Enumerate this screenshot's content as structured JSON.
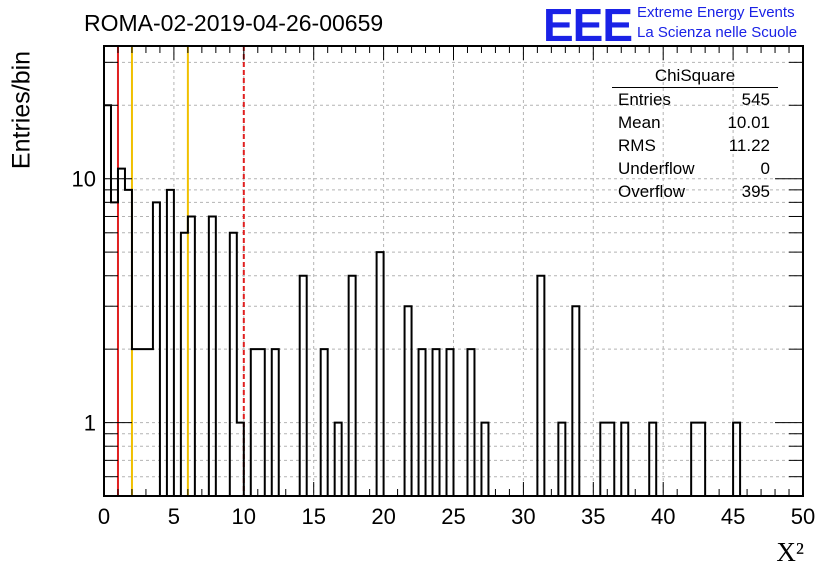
{
  "run_title": "ROMA-02-2019-04-26-00659",
  "logo": {
    "text": "EEE",
    "line1": "Extreme Energy Events",
    "line2": "La Scienza nelle Scuole",
    "color": "#1a22e6"
  },
  "stats": {
    "title": "ChiSquare",
    "rows": [
      {
        "label": "Entries",
        "value": "545"
      },
      {
        "label": "Mean",
        "value": "10.01"
      },
      {
        "label": "RMS",
        "value": "11.22"
      },
      {
        "label": "Underflow",
        "value": "0"
      },
      {
        "label": "Overflow",
        "value": "395"
      }
    ]
  },
  "chart_data": {
    "type": "bar",
    "style": "step-histogram",
    "title": "ROMA-02-2019-04-26-00659",
    "xlabel": "X²",
    "ylabel": "Entries/bin",
    "xlim": [
      0,
      50
    ],
    "ylim": [
      0.5,
      35
    ],
    "yscale": "log",
    "grid": true,
    "bin_width": 0.5,
    "xticks": [
      0,
      5,
      10,
      15,
      20,
      25,
      30,
      35,
      40,
      45,
      50
    ],
    "yticks": [
      1,
      10
    ],
    "bins": [
      {
        "x0": 0.0,
        "value": 20
      },
      {
        "x0": 0.5,
        "value": 8
      },
      {
        "x0": 1.0,
        "value": 11
      },
      {
        "x0": 1.5,
        "value": 9
      },
      {
        "x0": 2.0,
        "value": 2
      },
      {
        "x0": 2.5,
        "value": 2
      },
      {
        "x0": 3.0,
        "value": 2
      },
      {
        "x0": 3.5,
        "value": 8
      },
      {
        "x0": 4.5,
        "value": 9
      },
      {
        "x0": 5.5,
        "value": 6
      },
      {
        "x0": 6.0,
        "value": 7
      },
      {
        "x0": 7.5,
        "value": 7
      },
      {
        "x0": 9.0,
        "value": 6
      },
      {
        "x0": 9.5,
        "value": 1
      },
      {
        "x0": 10.5,
        "value": 2
      },
      {
        "x0": 11.0,
        "value": 2
      },
      {
        "x0": 12.0,
        "value": 2
      },
      {
        "x0": 14.0,
        "value": 4
      },
      {
        "x0": 15.5,
        "value": 2
      },
      {
        "x0": 16.5,
        "value": 1
      },
      {
        "x0": 17.5,
        "value": 4
      },
      {
        "x0": 19.5,
        "value": 5
      },
      {
        "x0": 21.5,
        "value": 3
      },
      {
        "x0": 22.5,
        "value": 2
      },
      {
        "x0": 23.5,
        "value": 2
      },
      {
        "x0": 24.5,
        "value": 2
      },
      {
        "x0": 26.0,
        "value": 2
      },
      {
        "x0": 27.0,
        "value": 1
      },
      {
        "x0": 31.0,
        "value": 4
      },
      {
        "x0": 32.5,
        "value": 1
      },
      {
        "x0": 33.5,
        "value": 3
      },
      {
        "x0": 35.5,
        "value": 1
      },
      {
        "x0": 36.0,
        "value": 1
      },
      {
        "x0": 37.0,
        "value": 1
      },
      {
        "x0": 39.0,
        "value": 1
      },
      {
        "x0": 42.0,
        "value": 1
      },
      {
        "x0": 42.5,
        "value": 1
      },
      {
        "x0": 45.0,
        "value": 1
      }
    ],
    "vertical_lines": [
      {
        "x": 1,
        "color": "#e02020",
        "style": "solid"
      },
      {
        "x": 2,
        "color": "#f0c000",
        "style": "solid"
      },
      {
        "x": 6,
        "color": "#f0c000",
        "style": "solid"
      },
      {
        "x": 10,
        "color": "#e02020",
        "style": "dashed"
      }
    ]
  }
}
